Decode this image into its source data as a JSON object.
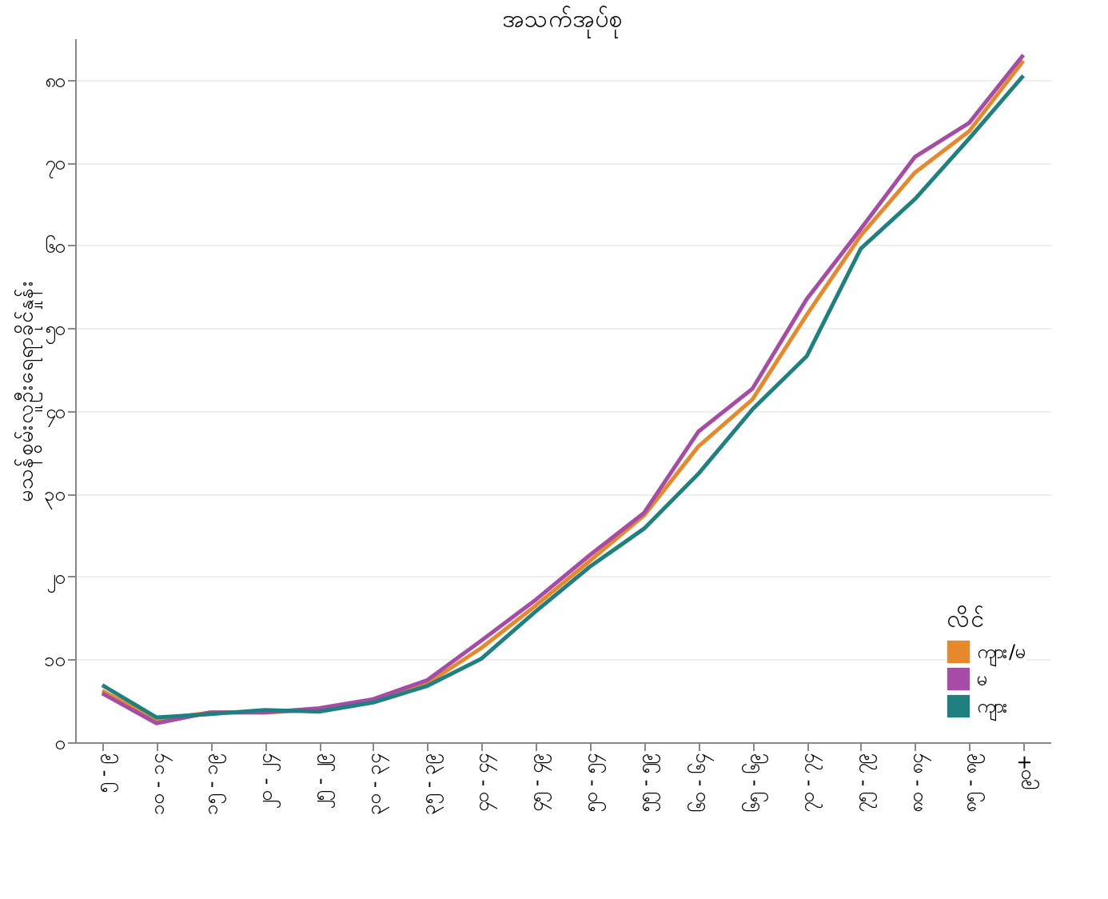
{
  "chart_data": {
    "type": "line",
    "title": "အသက်အုပ်စု",
    "ylabel": "မသန်စွမ်းလူဦးရေရာခိုင်နှုန်း",
    "legend_title": "လိင်",
    "categories": [
      "၅ - ၉",
      "၁၀ - ၁၄",
      "၁၅ - ၁၉",
      "၂၀ - ၂၄",
      "၂၅ - ၂၉",
      "၃၀ - ၃၄",
      "၃၅ - ၃၉",
      "၄၀ - ၄၄",
      "၄၅ - ၄၉",
      "၅၀ - ၅၄",
      "၅၅ - ၅၉",
      "၆၀ - ၆၄",
      "၆၅ - ၆၉",
      "၇၀ - ၇၄",
      "၇၅ - ၇၉",
      "၈၀ - ၈၄",
      "၈၅ - ၈၉",
      "၉၀+"
    ],
    "series": [
      {
        "name": "ကျား/မ",
        "color": "#e6892b",
        "values": [
          6.2,
          2.7,
          3.6,
          3.6,
          3.9,
          5.0,
          7.1,
          11.4,
          16.5,
          21.9,
          27.4,
          35.7,
          41.4,
          51.6,
          61.2,
          68.8,
          73.8,
          82.3
        ]
      },
      {
        "name": "မ",
        "color": "#a64ca6",
        "values": [
          5.9,
          2.3,
          3.6,
          3.6,
          4.1,
          5.2,
          7.5,
          12.3,
          17.2,
          22.6,
          27.7,
          37.5,
          42.7,
          53.5,
          62.0,
          70.7,
          74.8,
          83.0
        ]
      },
      {
        "name": "ကျား",
        "color": "#1f8080",
        "values": [
          6.9,
          3.0,
          3.4,
          3.9,
          3.7,
          4.8,
          6.8,
          10.1,
          15.8,
          21.2,
          25.8,
          32.4,
          40.2,
          46.6,
          59.6,
          65.6,
          72.9,
          80.5
        ]
      }
    ],
    "ylim": [
      0,
      85
    ],
    "yticks": [
      {
        "value": 0,
        "label": "၀"
      },
      {
        "value": 10,
        "label": "၁၀"
      },
      {
        "value": 20,
        "label": "၂၀"
      },
      {
        "value": 30,
        "label": "၃၀"
      },
      {
        "value": 40,
        "label": "၄၀"
      },
      {
        "value": 50,
        "label": "၅၀"
      },
      {
        "value": 60,
        "label": "၆၀"
      },
      {
        "value": 70,
        "label": "၇၀"
      },
      {
        "value": 80,
        "label": "၈၀"
      }
    ],
    "grid": "y",
    "legend": "bottom right",
    "line_style": "solid"
  }
}
